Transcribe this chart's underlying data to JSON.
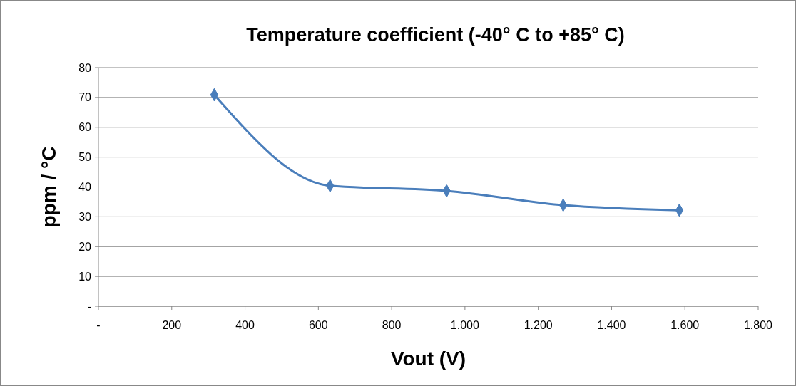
{
  "chart_data": {
    "type": "line",
    "title": "Temperature coefficient (-40° C to +85° C)",
    "xlabel": "Vout (V)",
    "ylabel": "ppm / °C",
    "x": [
      316,
      632,
      950,
      1268,
      1585
    ],
    "series": [
      {
        "color": "#4a7ebb",
        "values": [
          70.9,
          40.4,
          38.7,
          33.9,
          32.2
        ]
      }
    ],
    "xlim": [
      0,
      1800
    ],
    "xticks": [
      {
        "value": 0,
        "label": "-"
      },
      200,
      400,
      600,
      800,
      {
        "value": 1000,
        "label": "1.000"
      },
      {
        "value": 1200,
        "label": "1.200"
      },
      {
        "value": 1400,
        "label": "1.400"
      },
      {
        "value": 1600,
        "label": "1.600"
      },
      {
        "value": 1800,
        "label": "1.800"
      }
    ],
    "ylim": [
      0,
      80
    ],
    "yticks": [
      {
        "value": 0,
        "label": "-"
      },
      10,
      20,
      30,
      40,
      50,
      60,
      70,
      80
    ],
    "grid": "y",
    "marker": "diamond",
    "line_style": "solid"
  }
}
